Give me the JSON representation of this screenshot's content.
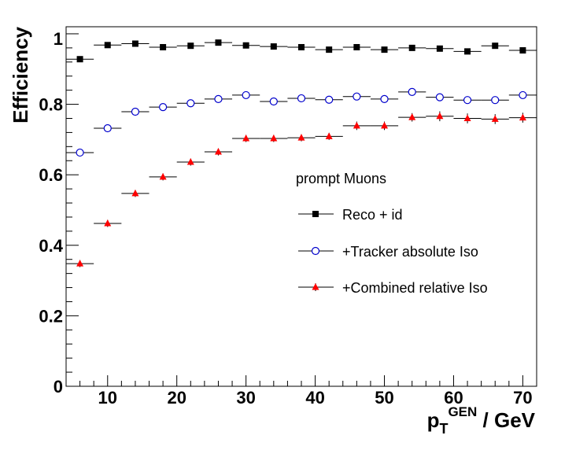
{
  "chart_data": {
    "type": "scatter",
    "xlabel": "p_T^GEN / GeV",
    "xlabel_parts": {
      "main": "p",
      "sub": "T",
      "sup": "GEN",
      "rest": " / GeV"
    },
    "ylabel": "Efficiency",
    "xlim": [
      4,
      72
    ],
    "ylim": [
      0,
      1.02
    ],
    "x_ticks": [
      10,
      20,
      30,
      40,
      50,
      60,
      70
    ],
    "x_tick_labels": [
      "10",
      "20",
      "30",
      "40",
      "50",
      "60",
      "70"
    ],
    "y_ticks": [
      0,
      0.2,
      0.4,
      0.6,
      0.8,
      1
    ],
    "y_tick_labels": [
      "0",
      "0.2",
      "0.4",
      "0.6",
      "0.8",
      "1"
    ],
    "bin_half_width": 2,
    "x": [
      6,
      10,
      14,
      18,
      22,
      26,
      30,
      34,
      38,
      42,
      46,
      50,
      54,
      58,
      62,
      66,
      70
    ],
    "legend_title": "prompt Muons",
    "series": [
      {
        "name": "Reco + id",
        "marker": "square",
        "color": "#000000",
        "values": [
          0.928,
          0.968,
          0.972,
          0.962,
          0.966,
          0.975,
          0.967,
          0.964,
          0.962,
          0.955,
          0.962,
          0.955,
          0.96,
          0.958,
          0.95,
          0.966,
          0.953
        ],
        "errors": [
          0.008,
          0.005,
          0.005,
          0.005,
          0.005,
          0.005,
          0.005,
          0.005,
          0.005,
          0.005,
          0.005,
          0.005,
          0.005,
          0.005,
          0.005,
          0.005,
          0.005
        ]
      },
      {
        "name": "+Tracker absolute Iso",
        "marker": "open-circle",
        "color": "#0000cc",
        "values": [
          0.663,
          0.732,
          0.779,
          0.792,
          0.803,
          0.815,
          0.826,
          0.808,
          0.817,
          0.813,
          0.822,
          0.815,
          0.835,
          0.82,
          0.812,
          0.812,
          0.826
        ],
        "errors": [
          0.01,
          0.008,
          0.008,
          0.008,
          0.008,
          0.008,
          0.008,
          0.008,
          0.008,
          0.008,
          0.008,
          0.008,
          0.008,
          0.01,
          0.01,
          0.01,
          0.01
        ]
      },
      {
        "name": "+Combined relative Iso",
        "marker": "triangle",
        "color": "#ff0000",
        "values": [
          0.348,
          0.462,
          0.547,
          0.594,
          0.636,
          0.665,
          0.703,
          0.703,
          0.705,
          0.709,
          0.739,
          0.739,
          0.763,
          0.766,
          0.76,
          0.758,
          0.762
        ],
        "errors": [
          0.01,
          0.01,
          0.01,
          0.01,
          0.01,
          0.01,
          0.01,
          0.01,
          0.01,
          0.01,
          0.012,
          0.012,
          0.012,
          0.014,
          0.014,
          0.014,
          0.014
        ]
      }
    ]
  }
}
